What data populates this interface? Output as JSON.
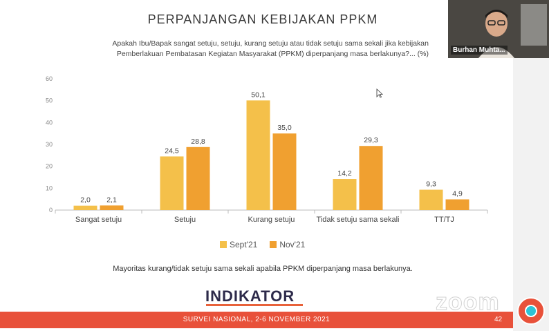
{
  "slide": {
    "title": "PERPANJANGAN KEBIJAKAN PPKM",
    "question_line1": "Apakah Ibu/Bapak sangat setuju, setuju, kurang setuju atau tidak setuju sama sekali jika kebijakan",
    "question_line2": "Pemberlakuan Pembatasan Kegiatan Masyarakat (PPKM) diperpanjang masa berlakunya?... (%)",
    "footnote": "Mayoritas kurang/tidak setuju sama sekali apabila PPKM diperpanjang masa berlakunya.",
    "logo_text": "INDIKATOR",
    "footer": "SURVEI NASIONAL, 2-6 NOVEMBER 2021",
    "page_number": "42"
  },
  "video": {
    "participant_name": "Burhan Muhta...",
    "watermark": "zoom"
  },
  "chart_data": {
    "type": "bar",
    "categories": [
      "Sangat setuju",
      "Setuju",
      "Kurang setuju",
      "Tidak setuju sama sekali",
      "TT/TJ"
    ],
    "series": [
      {
        "name": "Sept'21",
        "values": [
          2.0,
          24.5,
          50.1,
          14.2,
          9.3
        ],
        "color": "#f4c04a"
      },
      {
        "name": "Nov'21",
        "values": [
          2.1,
          28.8,
          35.0,
          29.3,
          4.9
        ],
        "color": "#f0a030"
      }
    ],
    "value_labels": [
      [
        "2,0",
        "24,5",
        "50,1",
        "14,2",
        "9,3"
      ],
      [
        "2,1",
        "28,8",
        "35,0",
        "29,3",
        "4,9"
      ]
    ],
    "ylim": [
      0,
      60
    ],
    "yticks": [
      "0",
      "10",
      "20",
      "30",
      "40",
      "50",
      "60"
    ],
    "grid": false,
    "legend": "bottom"
  }
}
